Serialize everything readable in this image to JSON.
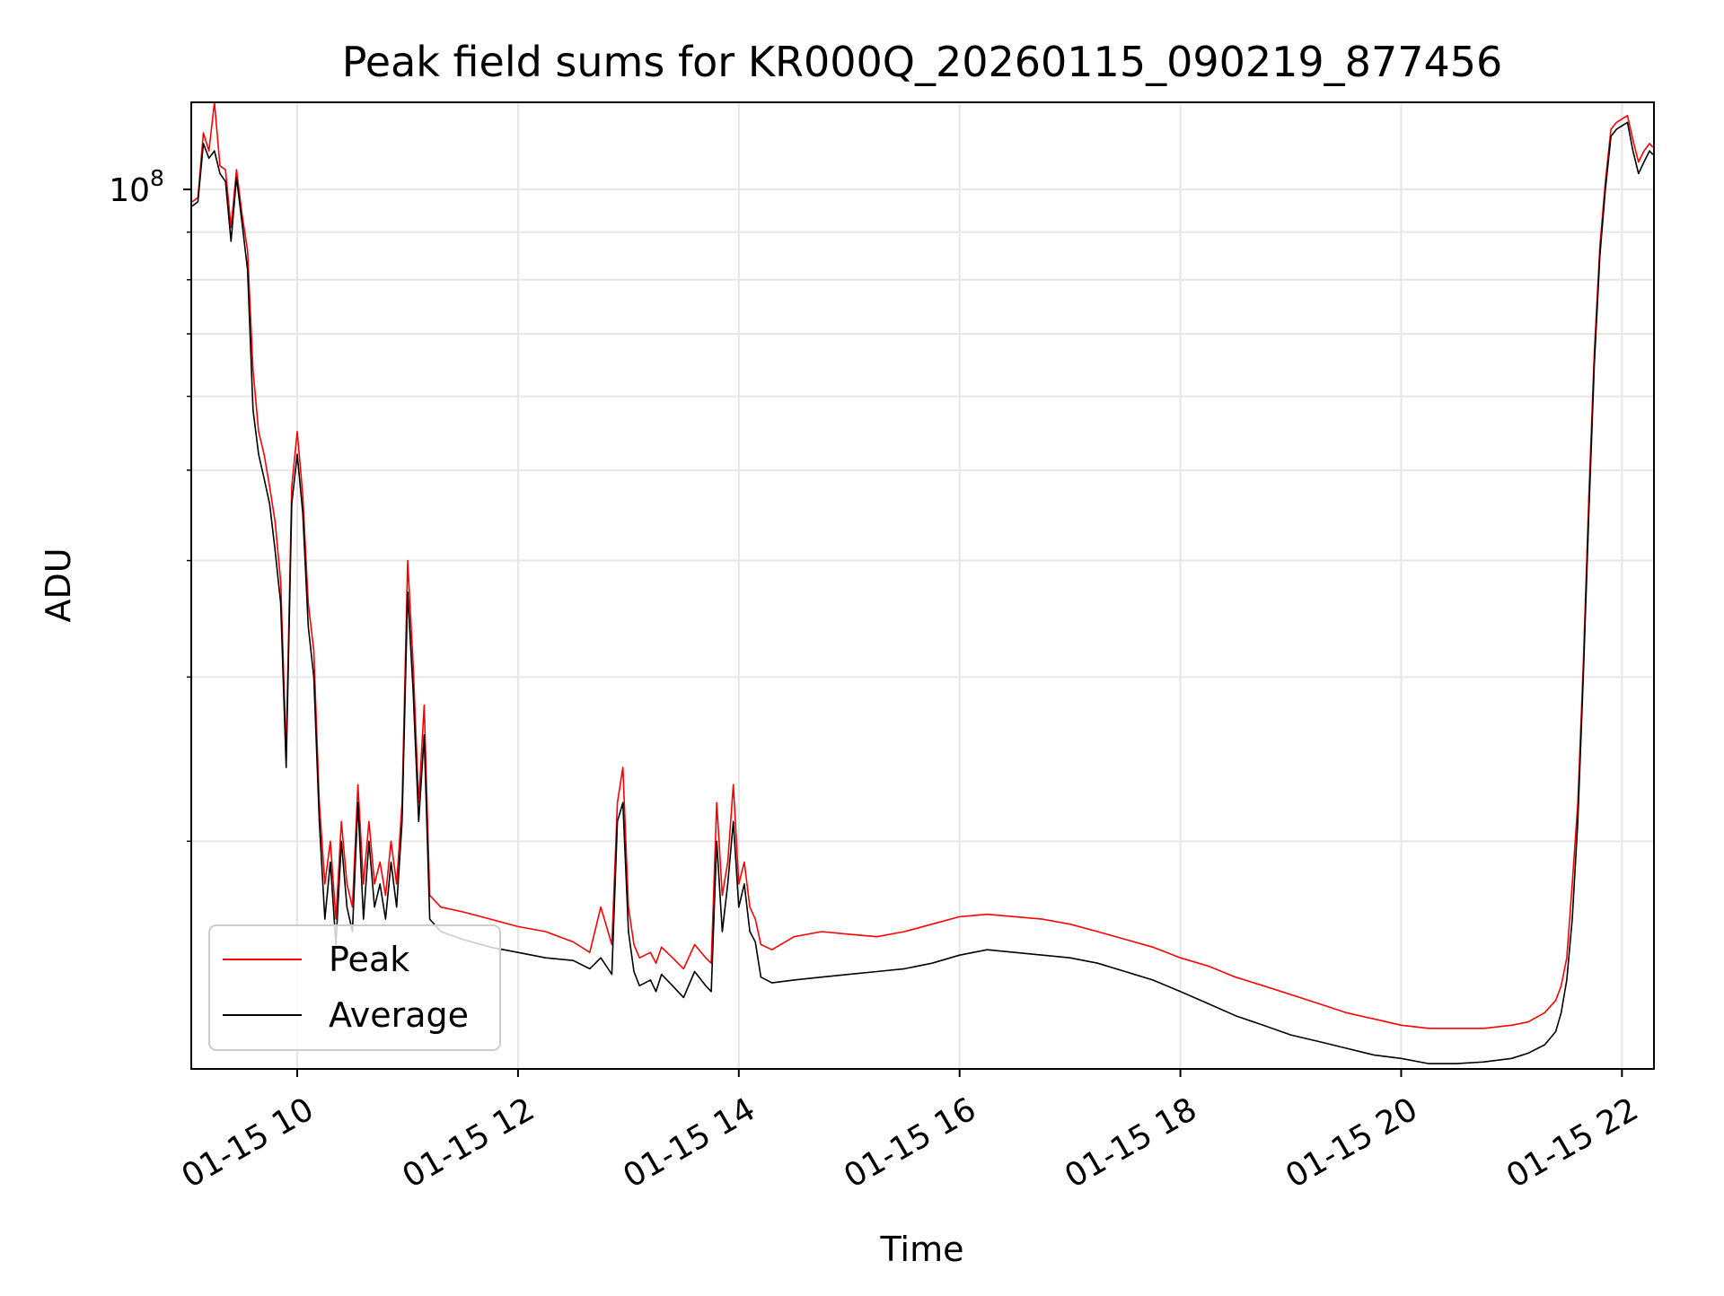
{
  "chart_data": {
    "type": "line",
    "title": "Peak field sums for KR000Q_20260115_090219_877456",
    "xlabel": "Time",
    "ylabel": "ADU",
    "yscale": "log",
    "xlim_hours": [
      9.04,
      22.29
    ],
    "ylim": [
      11400000,
      124000000
    ],
    "x_ticks": [
      {
        "hour": 10,
        "label": "01-15 10"
      },
      {
        "hour": 12,
        "label": "01-15 12"
      },
      {
        "hour": 14,
        "label": "01-15 14"
      },
      {
        "hour": 16,
        "label": "01-15 16"
      },
      {
        "hour": 18,
        "label": "01-15 18"
      },
      {
        "hour": 20,
        "label": "01-15 20"
      },
      {
        "hour": 22,
        "label": "01-15 22"
      }
    ],
    "y_major_ticks": [
      {
        "value": 100000000,
        "label_base": "10",
        "label_exp": "8"
      }
    ],
    "y_minor_ticks": [
      20000000,
      30000000,
      40000000,
      50000000,
      60000000,
      70000000,
      80000000,
      90000000
    ],
    "grid": true,
    "legend_position": "lower-left",
    "series": [
      {
        "name": "Average",
        "color": "#000000",
        "x_hours": [
          9.05,
          9.1,
          9.15,
          9.2,
          9.25,
          9.3,
          9.35,
          9.4,
          9.45,
          9.5,
          9.55,
          9.6,
          9.65,
          9.7,
          9.75,
          9.8,
          9.85,
          9.9,
          9.95,
          10.0,
          10.05,
          10.1,
          10.15,
          10.2,
          10.25,
          10.3,
          10.35,
          10.4,
          10.45,
          10.5,
          10.55,
          10.6,
          10.65,
          10.7,
          10.75,
          10.8,
          10.85,
          10.9,
          10.95,
          11.0,
          11.05,
          11.1,
          11.15,
          11.2,
          11.3,
          11.5,
          11.75,
          12.0,
          12.25,
          12.5,
          12.65,
          12.75,
          12.85,
          12.9,
          12.95,
          13.0,
          13.05,
          13.1,
          13.2,
          13.25,
          13.3,
          13.4,
          13.5,
          13.6,
          13.7,
          13.75,
          13.8,
          13.85,
          13.9,
          13.95,
          14.0,
          14.05,
          14.1,
          14.15,
          14.2,
          14.3,
          14.5,
          14.75,
          15.0,
          15.25,
          15.5,
          15.75,
          16.0,
          16.25,
          16.5,
          16.75,
          17.0,
          17.25,
          17.5,
          17.75,
          18.0,
          18.25,
          18.5,
          18.75,
          19.0,
          19.25,
          19.5,
          19.75,
          20.0,
          20.25,
          20.5,
          20.75,
          21.0,
          21.15,
          21.3,
          21.4,
          21.45,
          21.5,
          21.55,
          21.6,
          21.65,
          21.7,
          21.75,
          21.8,
          21.85,
          21.9,
          21.95,
          22.0,
          22.05,
          22.1,
          22.15,
          22.2,
          22.25,
          22.28
        ],
        "values": [
          96000000,
          97000000,
          112000000,
          108000000,
          110000000,
          104000000,
          102000000,
          88000000,
          103000000,
          92000000,
          82000000,
          58000000,
          52000000,
          49000000,
          46000000,
          41000000,
          36000000,
          24000000,
          46000000,
          52000000,
          45000000,
          34000000,
          30000000,
          21000000,
          16500000,
          19000000,
          15500000,
          20000000,
          17000000,
          16000000,
          22000000,
          16500000,
          20000000,
          17000000,
          18000000,
          16500000,
          19000000,
          17000000,
          21000000,
          37000000,
          29000000,
          21000000,
          26000000,
          16500000,
          16000000,
          15700000,
          15400000,
          15200000,
          15000000,
          14900000,
          14600000,
          15000000,
          14400000,
          21000000,
          22000000,
          16000000,
          14500000,
          14000000,
          14200000,
          13800000,
          14400000,
          14000000,
          13600000,
          14500000,
          14000000,
          13800000,
          20000000,
          16000000,
          18000000,
          21000000,
          17000000,
          18000000,
          16000000,
          15600000,
          14300000,
          14100000,
          14200000,
          14300000,
          14400000,
          14500000,
          14600000,
          14800000,
          15100000,
          15300000,
          15200000,
          15100000,
          15000000,
          14800000,
          14500000,
          14200000,
          13800000,
          13400000,
          13000000,
          12700000,
          12400000,
          12200000,
          12000000,
          11800000,
          11700000,
          11550000,
          11550000,
          11600000,
          11700000,
          11850000,
          12100000,
          12500000,
          13100000,
          14200000,
          16500000,
          21000000,
          30000000,
          45000000,
          65000000,
          85000000,
          100000000,
          114000000,
          116000000,
          117000000,
          118000000,
          110000000,
          104000000,
          107000000,
          110000000,
          109000000
        ]
      },
      {
        "name": "Peak",
        "color": "#ff0000",
        "x_hours": [
          9.05,
          9.1,
          9.15,
          9.2,
          9.25,
          9.3,
          9.35,
          9.4,
          9.45,
          9.5,
          9.55,
          9.6,
          9.65,
          9.7,
          9.75,
          9.8,
          9.85,
          9.9,
          9.95,
          10.0,
          10.05,
          10.1,
          10.15,
          10.2,
          10.25,
          10.3,
          10.35,
          10.4,
          10.45,
          10.5,
          10.55,
          10.6,
          10.65,
          10.7,
          10.75,
          10.8,
          10.85,
          10.9,
          10.95,
          11.0,
          11.05,
          11.1,
          11.15,
          11.2,
          11.3,
          11.5,
          11.75,
          12.0,
          12.25,
          12.5,
          12.65,
          12.75,
          12.85,
          12.9,
          12.95,
          13.0,
          13.05,
          13.1,
          13.2,
          13.25,
          13.3,
          13.4,
          13.5,
          13.6,
          13.7,
          13.75,
          13.8,
          13.85,
          13.9,
          13.95,
          14.0,
          14.05,
          14.1,
          14.15,
          14.2,
          14.3,
          14.5,
          14.75,
          15.0,
          15.25,
          15.5,
          15.75,
          16.0,
          16.25,
          16.5,
          16.75,
          17.0,
          17.25,
          17.5,
          17.75,
          18.0,
          18.25,
          18.5,
          18.75,
          19.0,
          19.25,
          19.5,
          19.75,
          20.0,
          20.25,
          20.5,
          20.75,
          21.0,
          21.15,
          21.3,
          21.4,
          21.45,
          21.5,
          21.55,
          21.6,
          21.65,
          21.7,
          21.75,
          21.8,
          21.85,
          21.9,
          21.95,
          22.0,
          22.05,
          22.1,
          22.15,
          22.2,
          22.25,
          22.28
        ],
        "values": [
          97000000,
          98000000,
          115000000,
          110000000,
          124000000,
          106000000,
          105000000,
          91000000,
          105000000,
          94000000,
          86000000,
          64000000,
          55000000,
          52000000,
          48000000,
          44000000,
          38000000,
          25000000,
          48000000,
          55000000,
          47000000,
          36000000,
          32000000,
          22000000,
          18000000,
          20000000,
          16500000,
          21000000,
          18000000,
          17000000,
          23000000,
          18000000,
          21000000,
          18000000,
          19000000,
          17500000,
          20000000,
          18000000,
          22000000,
          40000000,
          31000000,
          22000000,
          28000000,
          17500000,
          17000000,
          16800000,
          16500000,
          16200000,
          16000000,
          15600000,
          15200000,
          17000000,
          15500000,
          22000000,
          24000000,
          17000000,
          15500000,
          15000000,
          15200000,
          14800000,
          15400000,
          15000000,
          14600000,
          15500000,
          15000000,
          14800000,
          22000000,
          17500000,
          19000000,
          23000000,
          18000000,
          19000000,
          17000000,
          16500000,
          15500000,
          15300000,
          15800000,
          16000000,
          15900000,
          15800000,
          16000000,
          16300000,
          16600000,
          16700000,
          16600000,
          16500000,
          16300000,
          16000000,
          15700000,
          15400000,
          15000000,
          14700000,
          14300000,
          14000000,
          13700000,
          13400000,
          13100000,
          12900000,
          12700000,
          12600000,
          12600000,
          12600000,
          12700000,
          12800000,
          13100000,
          13500000,
          14000000,
          15000000,
          18000000,
          22000000,
          31000000,
          47000000,
          67000000,
          87000000,
          102000000,
          116000000,
          118000000,
          119000000,
          120000000,
          113000000,
          107000000,
          110000000,
          112000000,
          111000000
        ]
      }
    ]
  }
}
